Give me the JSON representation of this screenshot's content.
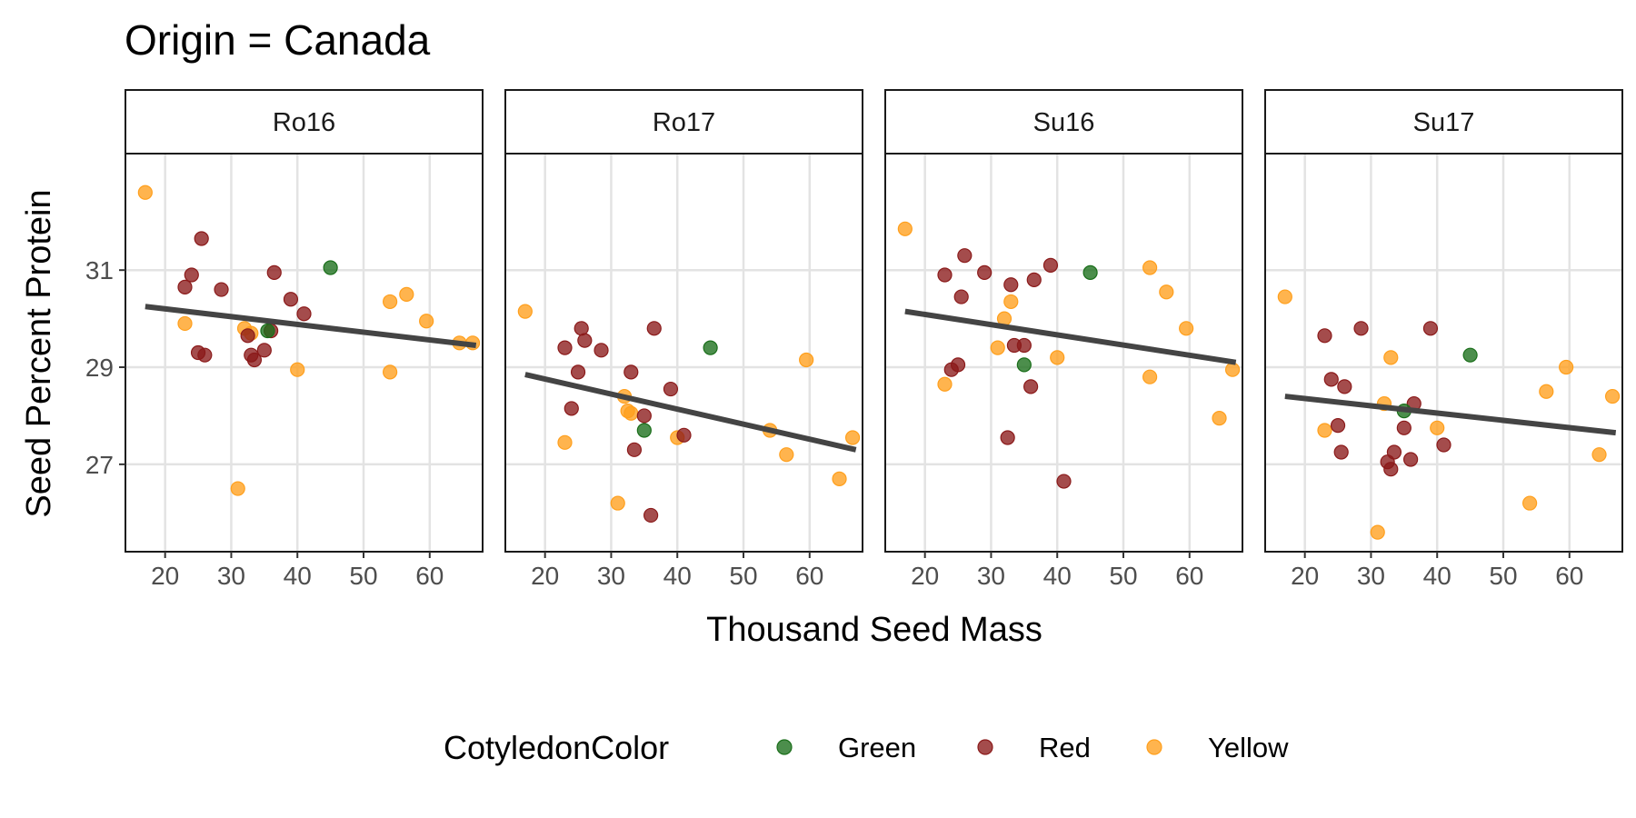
{
  "chart_data": {
    "type": "scatter",
    "title": "Origin = Canada",
    "xlabel": "Thousand Seed Mass",
    "ylabel": "Seed Percent Protein",
    "xlim": [
      14,
      68
    ],
    "ylim": [
      25.2,
      33.4
    ],
    "x_ticks": [
      "20",
      "30",
      "40",
      "50",
      "60"
    ],
    "x_tick_values": [
      20,
      30,
      40,
      50,
      60
    ],
    "y_ticks": [
      "27",
      "29",
      "31"
    ],
    "y_tick_values": [
      27,
      29,
      31
    ],
    "grid": true,
    "legend": {
      "title": "CotyledonColor",
      "position": "bottom",
      "items": [
        {
          "label": "Green",
          "color": "#1a6e1a"
        },
        {
          "label": "Red",
          "color": "#8b1a1a"
        },
        {
          "label": "Yellow",
          "color": "#ff9f1c"
        }
      ]
    },
    "colors": {
      "Green": "#1a6e1a",
      "Red": "#8b1a1a",
      "Yellow": "#ff9f1c",
      "trend": "#444444"
    },
    "panels": [
      {
        "name": "Ro16",
        "trend": [
          [
            17,
            30.25
          ],
          [
            67,
            29.45
          ]
        ],
        "points": [
          {
            "x": 17,
            "y": 32.6,
            "color": "Yellow"
          },
          {
            "x": 23,
            "y": 29.9,
            "color": "Yellow"
          },
          {
            "x": 31,
            "y": 26.5,
            "color": "Yellow"
          },
          {
            "x": 32,
            "y": 29.8,
            "color": "Yellow"
          },
          {
            "x": 33,
            "y": 29.7,
            "color": "Yellow"
          },
          {
            "x": 40,
            "y": 28.95,
            "color": "Yellow"
          },
          {
            "x": 54,
            "y": 30.35,
            "color": "Yellow"
          },
          {
            "x": 54,
            "y": 28.9,
            "color": "Yellow"
          },
          {
            "x": 56.5,
            "y": 30.5,
            "color": "Yellow"
          },
          {
            "x": 59.5,
            "y": 29.95,
            "color": "Yellow"
          },
          {
            "x": 64.5,
            "y": 29.5,
            "color": "Yellow"
          },
          {
            "x": 66.5,
            "y": 29.5,
            "color": "Yellow"
          },
          {
            "x": 23,
            "y": 30.65,
            "color": "Red"
          },
          {
            "x": 24,
            "y": 30.9,
            "color": "Red"
          },
          {
            "x": 25,
            "y": 29.3,
            "color": "Red"
          },
          {
            "x": 25.5,
            "y": 31.65,
            "color": "Red"
          },
          {
            "x": 26,
            "y": 29.25,
            "color": "Red"
          },
          {
            "x": 28.5,
            "y": 30.6,
            "color": "Red"
          },
          {
            "x": 32.5,
            "y": 29.65,
            "color": "Red"
          },
          {
            "x": 33,
            "y": 29.25,
            "color": "Red"
          },
          {
            "x": 33.5,
            "y": 29.15,
            "color": "Red"
          },
          {
            "x": 35,
            "y": 29.35,
            "color": "Red"
          },
          {
            "x": 36,
            "y": 29.75,
            "color": "Red"
          },
          {
            "x": 36.5,
            "y": 30.95,
            "color": "Red"
          },
          {
            "x": 39,
            "y": 30.4,
            "color": "Red"
          },
          {
            "x": 41,
            "y": 30.1,
            "color": "Red"
          },
          {
            "x": 35.5,
            "y": 29.75,
            "color": "Green"
          },
          {
            "x": 45,
            "y": 31.05,
            "color": "Green"
          }
        ]
      },
      {
        "name": "Ro17",
        "trend": [
          [
            17,
            28.85
          ],
          [
            67,
            27.3
          ]
        ],
        "points": [
          {
            "x": 17,
            "y": 30.15,
            "color": "Yellow"
          },
          {
            "x": 23,
            "y": 27.45,
            "color": "Yellow"
          },
          {
            "x": 31,
            "y": 26.2,
            "color": "Yellow"
          },
          {
            "x": 32,
            "y": 28.4,
            "color": "Yellow"
          },
          {
            "x": 32.5,
            "y": 28.1,
            "color": "Yellow"
          },
          {
            "x": 33,
            "y": 28.05,
            "color": "Yellow"
          },
          {
            "x": 40,
            "y": 27.55,
            "color": "Yellow"
          },
          {
            "x": 54,
            "y": 27.7,
            "color": "Yellow"
          },
          {
            "x": 56.5,
            "y": 27.2,
            "color": "Yellow"
          },
          {
            "x": 59.5,
            "y": 29.15,
            "color": "Yellow"
          },
          {
            "x": 64.5,
            "y": 26.7,
            "color": "Yellow"
          },
          {
            "x": 66.5,
            "y": 27.55,
            "color": "Yellow"
          },
          {
            "x": 23,
            "y": 29.4,
            "color": "Red"
          },
          {
            "x": 24,
            "y": 28.15,
            "color": "Red"
          },
          {
            "x": 25,
            "y": 28.9,
            "color": "Red"
          },
          {
            "x": 25.5,
            "y": 29.8,
            "color": "Red"
          },
          {
            "x": 26,
            "y": 29.55,
            "color": "Red"
          },
          {
            "x": 28.5,
            "y": 29.35,
            "color": "Red"
          },
          {
            "x": 33,
            "y": 28.9,
            "color": "Red"
          },
          {
            "x": 33.5,
            "y": 27.3,
            "color": "Red"
          },
          {
            "x": 35,
            "y": 28.0,
            "color": "Red"
          },
          {
            "x": 36,
            "y": 25.95,
            "color": "Red"
          },
          {
            "x": 36.5,
            "y": 29.8,
            "color": "Red"
          },
          {
            "x": 39,
            "y": 28.55,
            "color": "Red"
          },
          {
            "x": 41,
            "y": 27.6,
            "color": "Red"
          },
          {
            "x": 35,
            "y": 27.7,
            "color": "Green"
          },
          {
            "x": 45,
            "y": 29.4,
            "color": "Green"
          }
        ]
      },
      {
        "name": "Su16",
        "trend": [
          [
            17,
            30.15
          ],
          [
            67,
            29.1
          ]
        ],
        "points": [
          {
            "x": 17,
            "y": 31.85,
            "color": "Yellow"
          },
          {
            "x": 23,
            "y": 28.65,
            "color": "Yellow"
          },
          {
            "x": 31,
            "y": 29.4,
            "color": "Yellow"
          },
          {
            "x": 32,
            "y": 30.0,
            "color": "Yellow"
          },
          {
            "x": 33,
            "y": 30.35,
            "color": "Yellow"
          },
          {
            "x": 40,
            "y": 29.2,
            "color": "Yellow"
          },
          {
            "x": 54,
            "y": 31.05,
            "color": "Yellow"
          },
          {
            "x": 54,
            "y": 28.8,
            "color": "Yellow"
          },
          {
            "x": 56.5,
            "y": 30.55,
            "color": "Yellow"
          },
          {
            "x": 59.5,
            "y": 29.8,
            "color": "Yellow"
          },
          {
            "x": 64.5,
            "y": 27.95,
            "color": "Yellow"
          },
          {
            "x": 66.5,
            "y": 28.95,
            "color": "Yellow"
          },
          {
            "x": 23,
            "y": 30.9,
            "color": "Red"
          },
          {
            "x": 24,
            "y": 28.95,
            "color": "Red"
          },
          {
            "x": 25,
            "y": 29.05,
            "color": "Red"
          },
          {
            "x": 25.5,
            "y": 30.45,
            "color": "Red"
          },
          {
            "x": 26,
            "y": 31.3,
            "color": "Red"
          },
          {
            "x": 29,
            "y": 30.95,
            "color": "Red"
          },
          {
            "x": 32.5,
            "y": 27.55,
            "color": "Red"
          },
          {
            "x": 33,
            "y": 30.7,
            "color": "Red"
          },
          {
            "x": 33.5,
            "y": 29.45,
            "color": "Red"
          },
          {
            "x": 35,
            "y": 29.45,
            "color": "Red"
          },
          {
            "x": 36,
            "y": 28.6,
            "color": "Red"
          },
          {
            "x": 36.5,
            "y": 30.8,
            "color": "Red"
          },
          {
            "x": 39,
            "y": 31.1,
            "color": "Red"
          },
          {
            "x": 41,
            "y": 26.65,
            "color": "Red"
          },
          {
            "x": 35,
            "y": 29.05,
            "color": "Green"
          },
          {
            "x": 45,
            "y": 30.95,
            "color": "Green"
          }
        ]
      },
      {
        "name": "Su17",
        "trend": [
          [
            17,
            28.4
          ],
          [
            67,
            27.65
          ]
        ],
        "points": [
          {
            "x": 17,
            "y": 30.45,
            "color": "Yellow"
          },
          {
            "x": 23,
            "y": 27.7,
            "color": "Yellow"
          },
          {
            "x": 31,
            "y": 25.6,
            "color": "Yellow"
          },
          {
            "x": 32,
            "y": 28.25,
            "color": "Yellow"
          },
          {
            "x": 33,
            "y": 29.2,
            "color": "Yellow"
          },
          {
            "x": 40,
            "y": 27.75,
            "color": "Yellow"
          },
          {
            "x": 54,
            "y": 26.2,
            "color": "Yellow"
          },
          {
            "x": 56.5,
            "y": 28.5,
            "color": "Yellow"
          },
          {
            "x": 59.5,
            "y": 29.0,
            "color": "Yellow"
          },
          {
            "x": 64.5,
            "y": 27.2,
            "color": "Yellow"
          },
          {
            "x": 66.5,
            "y": 28.4,
            "color": "Yellow"
          },
          {
            "x": 23,
            "y": 29.65,
            "color": "Red"
          },
          {
            "x": 24,
            "y": 28.75,
            "color": "Red"
          },
          {
            "x": 25,
            "y": 27.8,
            "color": "Red"
          },
          {
            "x": 25.5,
            "y": 27.25,
            "color": "Red"
          },
          {
            "x": 26,
            "y": 28.6,
            "color": "Red"
          },
          {
            "x": 28.5,
            "y": 29.8,
            "color": "Red"
          },
          {
            "x": 32.5,
            "y": 27.05,
            "color": "Red"
          },
          {
            "x": 33,
            "y": 26.9,
            "color": "Red"
          },
          {
            "x": 33.5,
            "y": 27.25,
            "color": "Red"
          },
          {
            "x": 35,
            "y": 27.75,
            "color": "Red"
          },
          {
            "x": 36,
            "y": 27.1,
            "color": "Red"
          },
          {
            "x": 36.5,
            "y": 28.25,
            "color": "Red"
          },
          {
            "x": 39,
            "y": 29.8,
            "color": "Red"
          },
          {
            "x": 41,
            "y": 27.4,
            "color": "Red"
          },
          {
            "x": 35,
            "y": 28.1,
            "color": "Green"
          },
          {
            "x": 45,
            "y": 29.25,
            "color": "Green"
          }
        ]
      }
    ]
  }
}
